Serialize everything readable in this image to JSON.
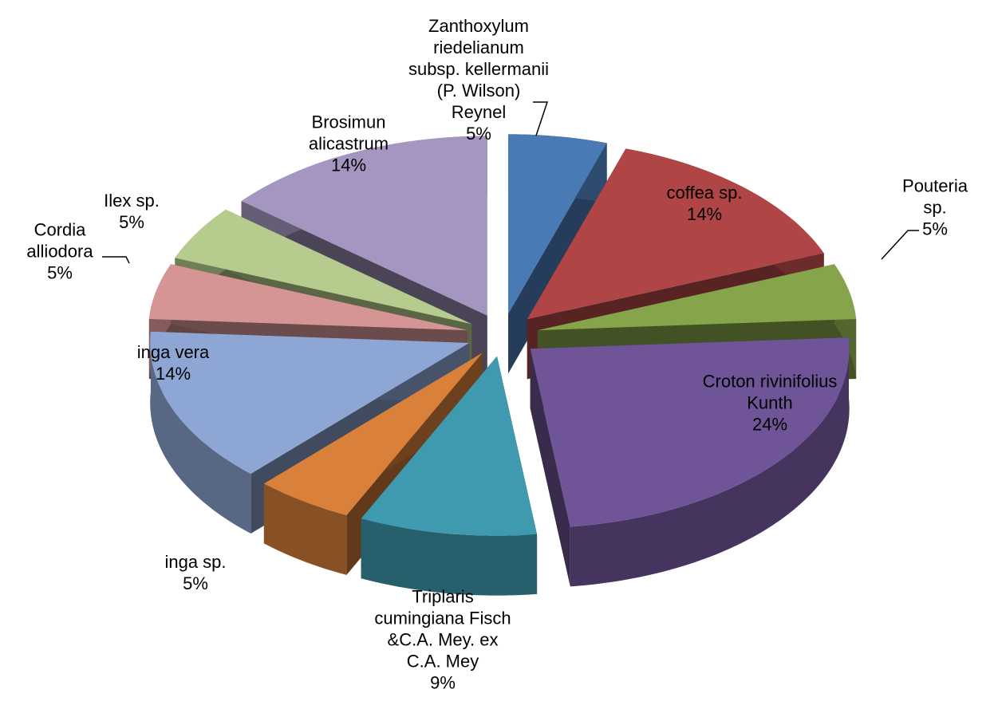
{
  "chart_data": {
    "type": "pie3d",
    "categories": [
      "Zanthoxylum\nriedelianum\nsubsp. kellermanii\n(P. Wilson)\nReynel",
      "coffea sp.",
      "Pouteria sp.",
      "Croton rivinifolius\nKunth",
      "Triplaris\ncumingiana Fisch\n&C.A. Mey. ex\nC.A. Mey",
      "inga sp.",
      "inga vera",
      "Cordia\nalliodora",
      "Ilex sp.",
      "Brosimun\nalicastrum"
    ],
    "values": [
      5,
      14,
      5,
      24,
      9,
      5,
      14,
      5,
      5,
      14
    ],
    "value_labels": [
      "5%",
      "14%",
      "5%",
      "24%",
      "9%",
      "5%",
      "14%",
      "5%",
      "5%",
      "14%"
    ],
    "colors": [
      "#4a7ab5",
      "#b04545",
      "#86a44a",
      "#6f5597",
      "#3f9aaf",
      "#d9813b",
      "#8ea6d4",
      "#d69595",
      "#b5cc8e",
      "#a496c0"
    ]
  }
}
